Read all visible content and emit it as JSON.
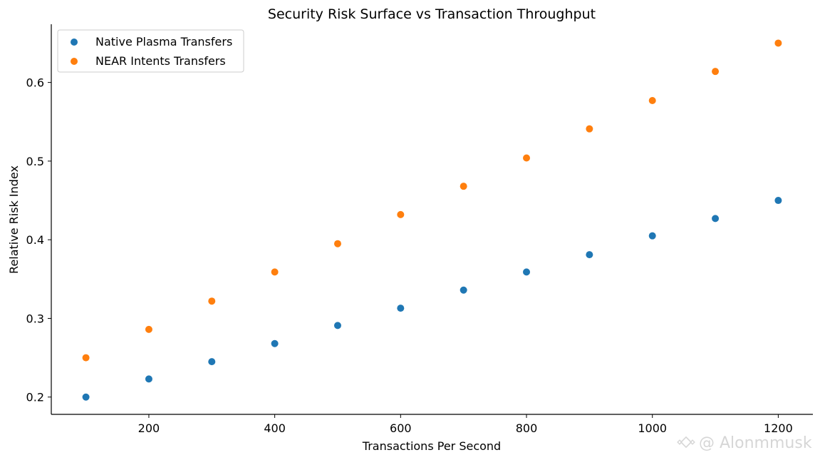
{
  "chart_data": {
    "type": "scatter",
    "title": "Security Risk Surface vs Transaction Throughput",
    "xlabel": "Transactions Per Second",
    "ylabel": "Relative Risk Index",
    "xlim": [
      45,
      1255
    ],
    "ylim": [
      0.178,
      0.674
    ],
    "xticks": [
      200,
      400,
      600,
      800,
      1000,
      1200
    ],
    "yticks": [
      0.2,
      0.3,
      0.4,
      0.5,
      0.6
    ],
    "x": [
      100,
      200,
      300,
      400,
      500,
      600,
      700,
      800,
      900,
      1000,
      1100,
      1200
    ],
    "series": [
      {
        "name": "Native Plasma Transfers",
        "color": "#1f77b4",
        "values": [
          0.2,
          0.223,
          0.245,
          0.268,
          0.291,
          0.313,
          0.336,
          0.359,
          0.381,
          0.405,
          0.427,
          0.45
        ]
      },
      {
        "name": "NEAR Intents Transfers",
        "color": "#ff7f0e",
        "values": [
          0.25,
          0.286,
          0.322,
          0.359,
          0.395,
          0.432,
          0.468,
          0.504,
          0.541,
          0.577,
          0.614,
          0.65
        ]
      }
    ],
    "legend_position": "top-left",
    "grid": false
  },
  "watermark": {
    "text": "@ Alonmmusk",
    "icon": "binance-logo-icon"
  }
}
